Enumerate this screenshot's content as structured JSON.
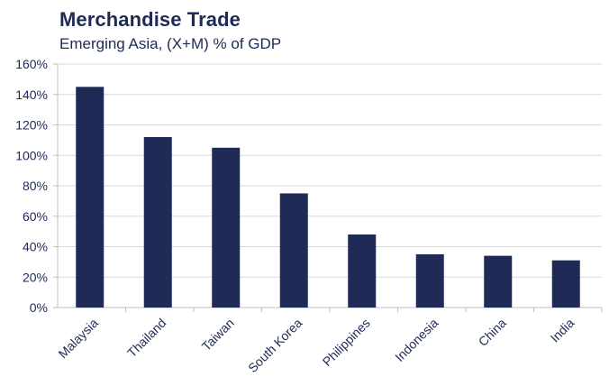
{
  "chart_data": {
    "type": "bar",
    "title": "Merchandise Trade",
    "subtitle": "Emerging Asia, (X+M) % of GDP",
    "categories": [
      "Malaysia",
      "Thailand",
      "Taiwan",
      "South Korea",
      "Philippines",
      "Indonesia",
      "China",
      "India"
    ],
    "values": [
      145,
      112,
      105,
      75,
      48,
      35,
      34,
      31
    ],
    "ylim": [
      0,
      160
    ],
    "y_ticks": [
      0,
      20,
      40,
      60,
      80,
      100,
      120,
      140,
      160
    ],
    "y_tick_labels": [
      "0%",
      "20%",
      "40%",
      "60%",
      "80%",
      "100%",
      "120%",
      "140%",
      "160%"
    ],
    "xlabel": "",
    "ylabel": "",
    "grid": true,
    "legend": "none",
    "bar_color": "#1f2a56"
  }
}
